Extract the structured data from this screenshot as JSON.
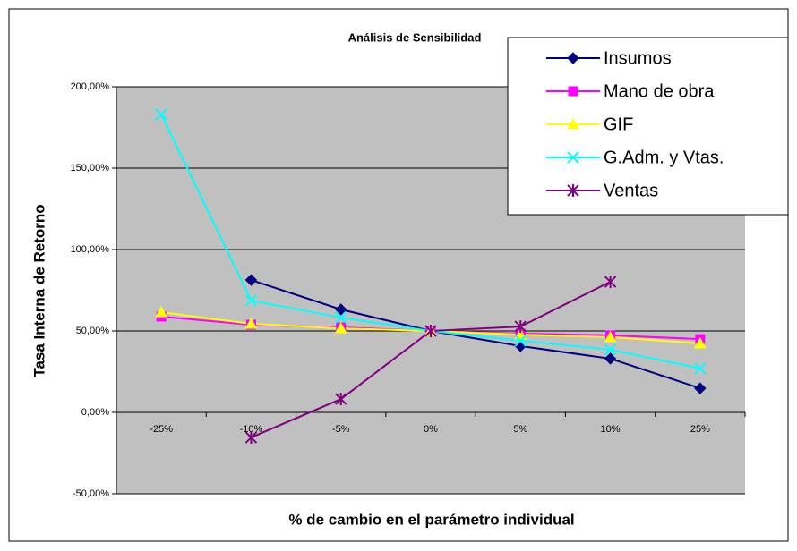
{
  "chart_data": {
    "type": "line",
    "title": "Análisis de Sensibilidad",
    "xlabel": "% de cambio en el parámetro individual",
    "ylabel": "Tasa Interna de Retorno",
    "categories": [
      "-25%",
      "-10%",
      "-5%",
      "0%",
      "5%",
      "10%",
      "25%"
    ],
    "series": [
      {
        "name": "Insumos",
        "color": "#000080",
        "marker": "diamond",
        "values": [
          null,
          81.3,
          63.2,
          50,
          40.7,
          33,
          14.8
        ]
      },
      {
        "name": "Mano de obra",
        "color": "#FF00FF",
        "marker": "square",
        "values": [
          58.8,
          53.8,
          52.2,
          50,
          48.4,
          47.3,
          45
        ]
      },
      {
        "name": "GIF",
        "color": "#FFFF00",
        "marker": "triangle",
        "values": [
          61.5,
          54.4,
          51.6,
          50,
          47.8,
          46.2,
          42.3
        ]
      },
      {
        "name": "G.Adm. y Vtas.",
        "color": "#00FFFF",
        "marker": "x",
        "values": [
          183,
          68.7,
          58.2,
          50,
          44,
          38.5,
          27
        ]
      },
      {
        "name": "Ventas",
        "color": "#800080",
        "marker": "star",
        "values": [
          null,
          -15.4,
          8.2,
          50,
          52.7,
          80.2,
          null
        ]
      }
    ],
    "ylim": [
      -50,
      200
    ],
    "yticks": [
      {
        "value": -50,
        "label": "-50,00%"
      },
      {
        "value": 0,
        "label": "0,00%"
      },
      {
        "value": 50,
        "label": "50,00%"
      },
      {
        "value": 100,
        "label": "100,00%"
      },
      {
        "value": 150,
        "label": "150,00%"
      },
      {
        "value": 200,
        "label": "200,00%"
      }
    ],
    "grid": true,
    "legend": "top-right"
  }
}
